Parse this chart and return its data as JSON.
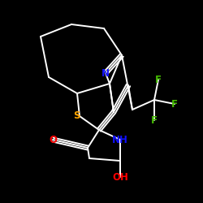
{
  "background_color": "#000000",
  "atom_colors": {
    "N": "#1010FF",
    "S": "#FFA500",
    "O": "#FF0000",
    "F": "#44BB00",
    "NH": "#1010FF",
    "C": "#FFFFFF"
  },
  "figsize": [
    2.5,
    2.5
  ],
  "dpi": 100
}
